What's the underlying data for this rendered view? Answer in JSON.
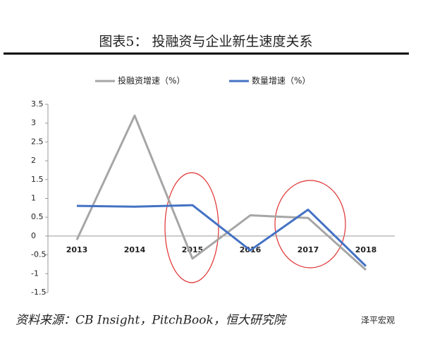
{
  "chart_data": {
    "type": "line",
    "title": "图表5：  投融资与企业新生速度关系",
    "categories": [
      "2013",
      "2014",
      "2015",
      "2016",
      "2017",
      "2018"
    ],
    "series": [
      {
        "name": "投融资增速（%）",
        "color": "#a6a6a6",
        "values": [
          -0.1,
          3.2,
          -0.6,
          0.55,
          0.48,
          -0.9
        ]
      },
      {
        "name": "数量增速（%）",
        "color": "#4472c4",
        "values": [
          0.8,
          0.78,
          0.82,
          -0.38,
          0.7,
          -0.8
        ]
      }
    ],
    "ylim": [
      -1.5,
      3.5
    ],
    "yticks": [
      3.5,
      3,
      2.5,
      2,
      1.5,
      1,
      0.5,
      0,
      -0.5,
      -1,
      -1.5
    ],
    "grid": false,
    "legend": "top",
    "source": "资料来源：CB Insight，PitchBook，恒大研究院",
    "watermark": "泽平宏观"
  }
}
